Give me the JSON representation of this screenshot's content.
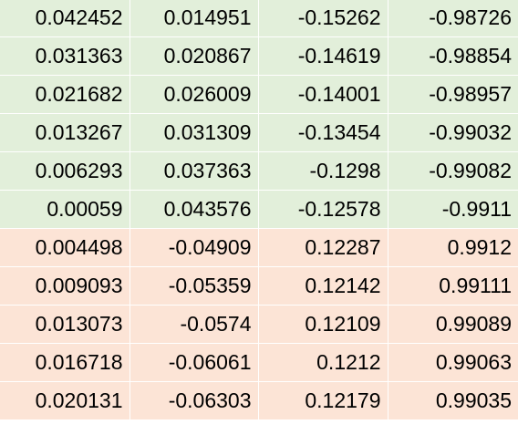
{
  "sheet": {
    "colors": {
      "green_fill": "#e2efda",
      "orange_fill": "#fce4d6"
    },
    "rows": [
      {
        "fill": "green",
        "cells": [
          "0.042452",
          "0.014951",
          "-0.15262",
          "-0.98726"
        ]
      },
      {
        "fill": "green",
        "cells": [
          "0.031363",
          "0.020867",
          "-0.14619",
          "-0.98854"
        ]
      },
      {
        "fill": "green",
        "cells": [
          "0.021682",
          "0.026009",
          "-0.14001",
          "-0.98957"
        ]
      },
      {
        "fill": "green",
        "cells": [
          "0.013267",
          "0.031309",
          "-0.13454",
          "-0.99032"
        ]
      },
      {
        "fill": "green",
        "cells": [
          "0.006293",
          "0.037363",
          "-0.1298",
          "-0.99082"
        ]
      },
      {
        "fill": "green",
        "cells": [
          "0.00059",
          "0.043576",
          "-0.12578",
          "-0.9911"
        ]
      },
      {
        "fill": "orange",
        "cells": [
          "0.004498",
          "-0.04909",
          "0.12287",
          "0.9912"
        ]
      },
      {
        "fill": "orange",
        "cells": [
          "0.009093",
          "-0.05359",
          "0.12142",
          "0.99111"
        ]
      },
      {
        "fill": "orange",
        "cells": [
          "0.013073",
          "-0.0574",
          "0.12109",
          "0.99089"
        ]
      },
      {
        "fill": "orange",
        "cells": [
          "0.016718",
          "-0.06061",
          "0.1212",
          "0.99063"
        ]
      },
      {
        "fill": "orange",
        "cells": [
          "0.020131",
          "-0.06303",
          "0.12179",
          "0.99035"
        ]
      }
    ]
  }
}
